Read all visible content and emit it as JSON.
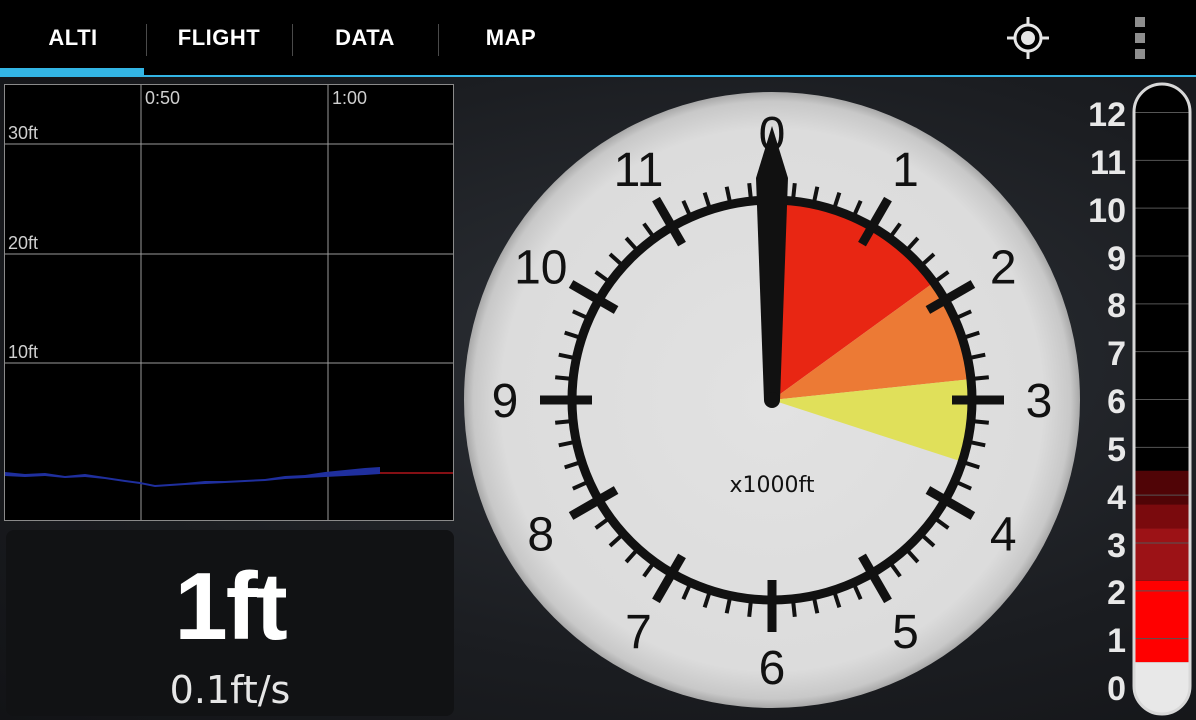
{
  "tabs": [
    {
      "label": "ALTI",
      "active": true
    },
    {
      "label": "FLIGHT",
      "active": false
    },
    {
      "label": "DATA",
      "active": false
    },
    {
      "label": "MAP",
      "active": false
    }
  ],
  "toolbar": {
    "icons": [
      "gps-target-icon",
      "overflow-menu-icon"
    ],
    "accent_color": "#33b5e5"
  },
  "graph": {
    "time_labels": [
      "0:50",
      "1:00"
    ],
    "altitude_labels": [
      "30ft",
      "20ft",
      "10ft"
    ],
    "line_color": "#1f2f9e",
    "ground_line_color": "#b0141a"
  },
  "readout": {
    "altitude": "1ft",
    "vertical_speed": "0.1ft/s"
  },
  "dial": {
    "numbers": [
      "0",
      "1",
      "2",
      "3",
      "4",
      "5",
      "6",
      "7",
      "8",
      "9",
      "10",
      "11"
    ],
    "unit_label": "x1000ft",
    "needle_value": 0.0,
    "zones": [
      {
        "from": 0.0,
        "to": 1.8,
        "color": "#e82613"
      },
      {
        "from": 1.8,
        "to": 2.8,
        "color": "#ec7a35"
      },
      {
        "from": 2.8,
        "to": 3.6,
        "color": "#e0e05a"
      }
    ]
  },
  "bar": {
    "labels": [
      "12",
      "11",
      "10",
      "9",
      "8",
      "7",
      "6",
      "5",
      "4",
      "3",
      "2",
      "1",
      "0"
    ],
    "levels": [
      {
        "from": 0,
        "to": 0.5,
        "color": "#e8e8e8"
      },
      {
        "from": 0.5,
        "to": 2.2,
        "color": "#ff0000"
      },
      {
        "from": 2.2,
        "to": 3.3,
        "color": "#9c1216"
      },
      {
        "from": 3.3,
        "to": 3.8,
        "color": "#7a0a0d"
      },
      {
        "from": 3.8,
        "to": 4.5,
        "color": "#500406"
      }
    ]
  }
}
